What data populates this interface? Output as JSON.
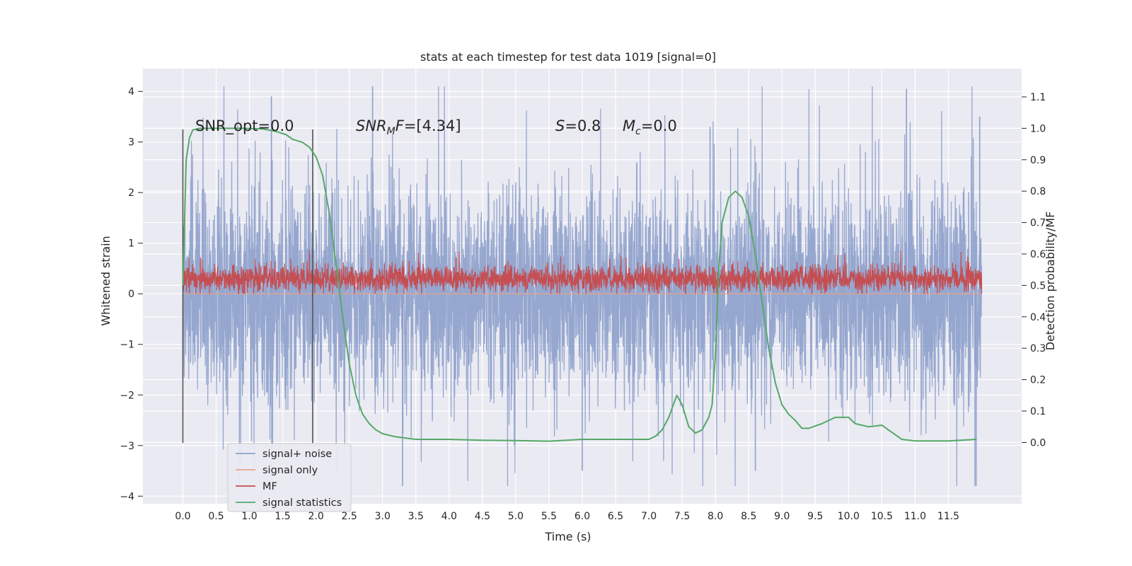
{
  "chart_data": {
    "type": "line",
    "title": "stats at each timestep for test data 1019 [signal=0]",
    "xlabel": "Time (s)",
    "ylabel_left": "Whitened strain",
    "ylabel_right": "Detection probability/MF",
    "xlim": [
      -0.6,
      12.6
    ],
    "ylim_left": [
      -4.15,
      4.45
    ],
    "ylim_right": [
      -0.195,
      1.19
    ],
    "grid": true,
    "x_ticks": [
      0.0,
      0.5,
      1.0,
      1.5,
      2.0,
      2.5,
      3.0,
      3.5,
      4.0,
      4.5,
      5.0,
      5.5,
      6.0,
      6.5,
      7.0,
      7.5,
      8.0,
      8.5,
      9.0,
      9.5,
      10.0,
      10.5,
      11.0,
      11.5
    ],
    "x_tick_labels": [
      "0.0",
      "0.5",
      "1.0",
      "1.5",
      "2.0",
      "2.5",
      "3.0",
      "3.5",
      "4.0",
      "4.5",
      "5.0",
      "5.5",
      "6.0",
      "6.5",
      "7.0",
      "7.5",
      "8.0",
      "8.5",
      "9.0",
      "9.5",
      "10.0",
      "10.5",
      "11.0",
      "11.5"
    ],
    "y_left_ticks": [
      4,
      3,
      2,
      1,
      0,
      -1,
      -2,
      -3,
      -4
    ],
    "y_left_tick_labels": [
      "4",
      "3",
      "2",
      "1",
      "0",
      "−1",
      "−2",
      "−3",
      "−4"
    ],
    "y_right_ticks": [
      1.1,
      1.0,
      0.9,
      0.8,
      0.7,
      0.6,
      0.5,
      0.4,
      0.3,
      0.2,
      0.1,
      0.0
    ],
    "y_right_tick_labels": [
      "1.1",
      "1.0",
      "0.9",
      "0.8",
      "0.7",
      "0.6",
      "0.5",
      "0.4",
      "0.3",
      "0.2",
      "0.1",
      "0.0"
    ],
    "legend_position": "lower-left",
    "series": [
      {
        "name": "signal+ noise",
        "color": "#8da0cb",
        "axis": "left",
        "description_stats": {
          "x_range": [
            0.0,
            12.0
          ],
          "typical_range": [
            -1.7,
            1.7
          ],
          "extremes": [
            -3.8,
            4.1
          ]
        },
        "peaks": [
          [
            1.33,
            3.9
          ],
          [
            2.85,
            4.1
          ],
          [
            7.92,
            3.3
          ],
          [
            10.87,
            4.05
          ],
          [
            11.97,
            3.5
          ],
          [
            8.6,
            -3.5
          ],
          [
            11.9,
            -3.8
          ],
          [
            3.3,
            -3.8
          ],
          [
            6.0,
            -3.5
          ]
        ]
      },
      {
        "name": "signal only",
        "color": "#e8a48a",
        "axis": "left",
        "values_constant": 0.0
      },
      {
        "name": "MF",
        "color": "#c44e52",
        "axis": "left",
        "description_stats": {
          "x_range": [
            0.0,
            12.0
          ],
          "typical_range": [
            0.05,
            0.55
          ],
          "extremes": [
            0.0,
            1.0
          ]
        }
      },
      {
        "name": "signal statistics",
        "color": "#55a868",
        "axis": "right",
        "x": [
          0.0,
          0.05,
          0.1,
          0.15,
          0.25,
          0.4,
          0.6,
          0.9,
          1.2,
          1.4,
          1.55,
          1.65,
          1.8,
          1.9,
          2.0,
          2.1,
          2.2,
          2.3,
          2.4,
          2.5,
          2.6,
          2.7,
          2.8,
          2.9,
          3.0,
          3.2,
          3.5,
          4.0,
          4.5,
          5.0,
          5.5,
          6.0,
          6.5,
          7.0,
          7.1,
          7.2,
          7.3,
          7.35,
          7.42,
          7.5,
          7.6,
          7.7,
          7.8,
          7.9,
          7.95,
          8.0,
          8.05,
          8.1,
          8.2,
          8.3,
          8.4,
          8.5,
          8.6,
          8.7,
          8.8,
          8.9,
          9.0,
          9.1,
          9.2,
          9.3,
          9.4,
          9.6,
          9.8,
          10.0,
          10.1,
          10.3,
          10.5,
          10.6,
          10.8,
          11.0,
          11.5,
          11.92
        ],
        "values": [
          0.5,
          0.9,
          0.97,
          0.995,
          1.0,
          1.0,
          1.0,
          1.0,
          0.998,
          0.99,
          0.98,
          0.965,
          0.955,
          0.94,
          0.91,
          0.85,
          0.73,
          0.57,
          0.4,
          0.25,
          0.15,
          0.09,
          0.06,
          0.04,
          0.028,
          0.018,
          0.01,
          0.01,
          0.007,
          0.006,
          0.004,
          0.01,
          0.01,
          0.01,
          0.02,
          0.04,
          0.08,
          0.11,
          0.15,
          0.12,
          0.05,
          0.03,
          0.04,
          0.08,
          0.12,
          0.28,
          0.55,
          0.7,
          0.78,
          0.8,
          0.78,
          0.72,
          0.6,
          0.45,
          0.3,
          0.19,
          0.12,
          0.09,
          0.07,
          0.045,
          0.045,
          0.06,
          0.08,
          0.08,
          0.06,
          0.05,
          0.055,
          0.04,
          0.01,
          0.005,
          0.005,
          0.01
        ]
      }
    ],
    "vertical_markers": [
      {
        "x": 0.0,
        "color": "#555555"
      },
      {
        "x": 1.95,
        "color": "#555555"
      }
    ],
    "annotations": [
      {
        "key": "snr_opt",
        "text": "SNR_opt=0.0"
      },
      {
        "key": "snr_mf",
        "base": "SNR",
        "sub": "M",
        "rest": "F=[4.34]"
      },
      {
        "key": "s",
        "base": "S",
        "rest": "=0.8"
      },
      {
        "key": "mc",
        "base": "M",
        "sub": "c",
        "rest": "=0.0"
      }
    ]
  }
}
